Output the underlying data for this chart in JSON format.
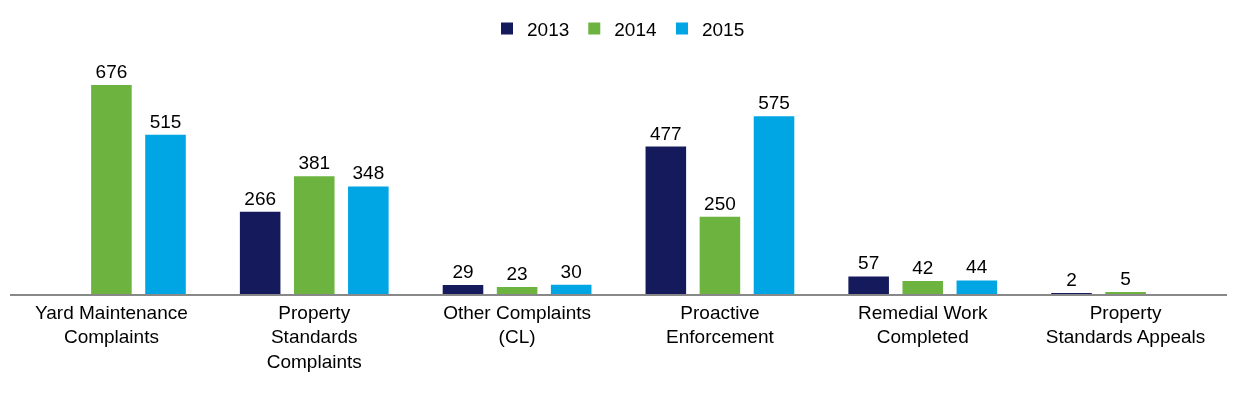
{
  "chart_data": {
    "type": "bar",
    "categories": [
      "Yard Maintenance Complaints",
      "Property Standards Complaints",
      "Other Complaints (CL)",
      "Proactive Enforcement",
      "Remedial Work Completed",
      "Property Standards Appeals"
    ],
    "series": [
      {
        "name": "2013",
        "color": "#141a5c",
        "values": [
          null,
          266,
          29,
          477,
          57,
          2
        ]
      },
      {
        "name": "2014",
        "color": "#6db33f",
        "values": [
          676,
          381,
          23,
          250,
          42,
          5
        ]
      },
      {
        "name": "2015",
        "color": "#00a5e3",
        "values": [
          515,
          348,
          30,
          575,
          44,
          null
        ]
      }
    ],
    "data_labels": true,
    "legend": "top",
    "grid": false
  }
}
